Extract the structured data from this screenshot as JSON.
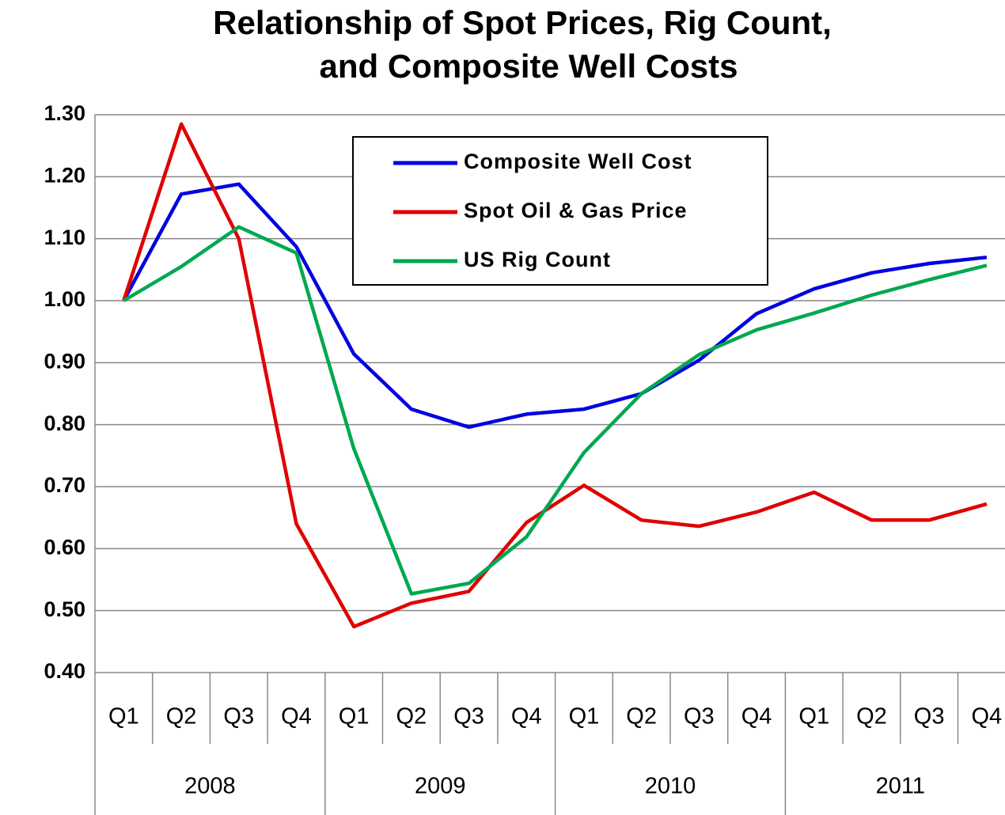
{
  "chart_data": {
    "type": "line",
    "title": [
      "Relationship of Spot Prices, Rig Count,",
      "and Composite Well Costs"
    ],
    "categories": [
      "Q1",
      "Q2",
      "Q3",
      "Q4",
      "Q1",
      "Q2",
      "Q3",
      "Q4",
      "Q1",
      "Q2",
      "Q3",
      "Q4",
      "Q1",
      "Q2",
      "Q3",
      "Q4"
    ],
    "category_groups": [
      "2008",
      "2009",
      "2010",
      "2011"
    ],
    "series": [
      {
        "name": "Composite Well Cost",
        "color": "#0000e0",
        "values": [
          1.0,
          1.172,
          1.188,
          1.087,
          0.914,
          0.825,
          0.796,
          0.817,
          0.825,
          0.85,
          0.904,
          0.979,
          1.019,
          1.045,
          1.06,
          1.07
        ]
      },
      {
        "name": "Spot Oil & Gas Price",
        "color": "#e00000",
        "values": [
          1.0,
          1.285,
          1.1,
          0.64,
          0.474,
          0.512,
          0.531,
          0.642,
          0.702,
          0.646,
          0.636,
          0.659,
          0.691,
          0.646,
          0.646,
          0.672
        ]
      },
      {
        "name": "US Rig Count",
        "color": "#00a850",
        "values": [
          1.0,
          1.055,
          1.119,
          1.077,
          0.761,
          0.527,
          0.544,
          0.619,
          0.755,
          0.85,
          0.913,
          0.953,
          0.98,
          1.009,
          1.034,
          1.057
        ]
      }
    ],
    "ylim": [
      0.4,
      1.3
    ],
    "yticks": [
      {
        "value": 0.4,
        "label": "0.40"
      },
      {
        "value": 0.5,
        "label": "0.50"
      },
      {
        "value": 0.6,
        "label": "0.60"
      },
      {
        "value": 0.7,
        "label": "0.70"
      },
      {
        "value": 0.8,
        "label": "0.80"
      },
      {
        "value": 0.9,
        "label": "0.90"
      },
      {
        "value": 1.0,
        "label": "1.00"
      },
      {
        "value": 1.1,
        "label": "1.10"
      },
      {
        "value": 1.2,
        "label": "1.20"
      },
      {
        "value": 1.3,
        "label": "1.30"
      }
    ],
    "grid": true,
    "legend": "top"
  }
}
